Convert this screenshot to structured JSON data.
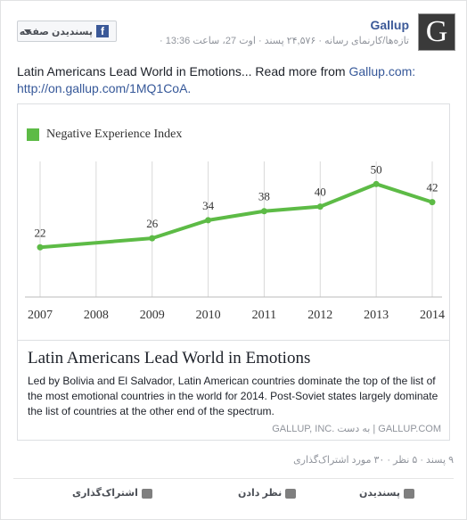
{
  "header": {
    "page_name": "Gallup",
    "meta": "تازه‌ها/کارنمای رسانه · ۲۴,۵۷۶ پسند · اوت 27، ساعت 13:36 ·",
    "like_button": "پسندیدن صفحه"
  },
  "post": {
    "text": "Latin Americans Lead World in Emotions... Read more from ",
    "link_site": "Gallup.com:",
    "link_url": "http://on.gallup.com/1MQ1CoA."
  },
  "chart_data": {
    "type": "line",
    "legend": "Negative Experience Index",
    "x": [
      2007,
      2009,
      2010,
      2011,
      2012,
      2013,
      2014
    ],
    "values": [
      22,
      26,
      34,
      38,
      40,
      50,
      42
    ],
    "color": "#5dbb46",
    "xlim": [
      2007,
      2014
    ],
    "xticks": [
      2007,
      2008,
      2009,
      2010,
      2011,
      2012,
      2013,
      2014
    ],
    "ylim": [
      0,
      60
    ],
    "grid": true
  },
  "article": {
    "title": "Latin Americans Lead World in Emotions",
    "description": "Led by Bolivia and El Salvador, Latin American countries dominate the top of the list of the most emotional countries in the world for 2014. Post-Soviet states largely dominate the list of countries at the other end of the spectrum.",
    "source": "GALLUP, INC. به دست",
    "domain": "GALLUP.COM"
  },
  "stats": "۹ پسند · ۵ نظر · ۳۰ مورد اشتراک‌گذاری",
  "actions": {
    "like": "پسندیدن",
    "comment": "نظر دادن",
    "share": "اشتراک‌گذاری"
  }
}
